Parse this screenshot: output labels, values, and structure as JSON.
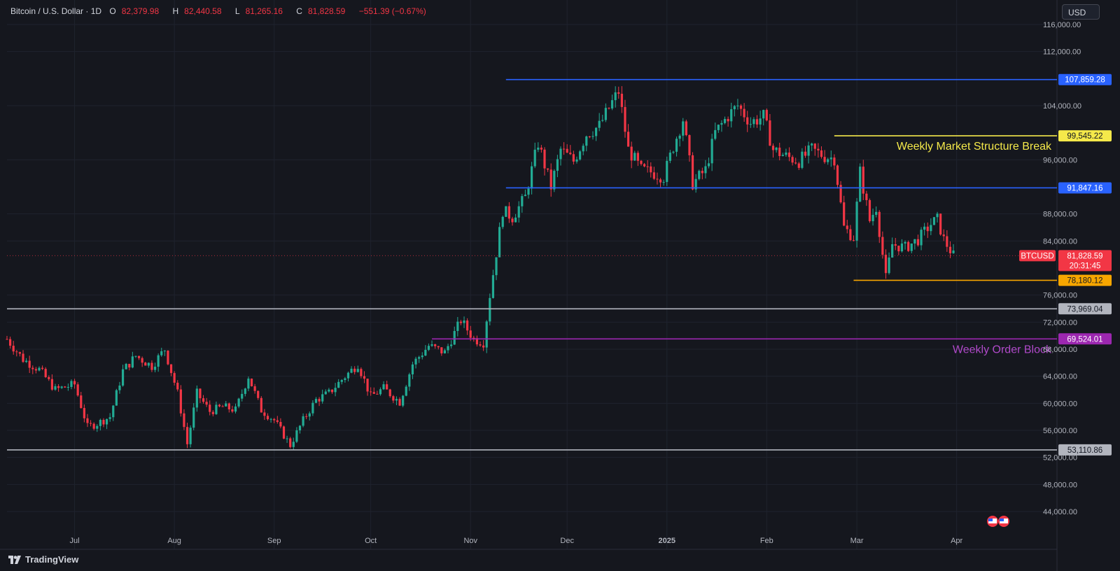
{
  "header": {
    "symbol": "Bitcoin / U.S. Dollar · 1D",
    "open_label": "O",
    "open": "82,379.98",
    "high_label": "H",
    "high": "82,440.58",
    "low_label": "L",
    "low": "81,265.16",
    "close_label": "C",
    "close": "81,828.59",
    "change": "−551.39 (−0.67%)"
  },
  "currency": "USD",
  "brand": "TradingView",
  "colors": {
    "background": "#15171e",
    "up": "#22ab94",
    "down": "#f23645",
    "blue_line": "#2962ff",
    "yellow_line": "#f5e94a",
    "orange_line": "#f7a600",
    "purple_line": "#9c27b0",
    "gray_line": "#b2b5be"
  },
  "chart_data": {
    "type": "candlestick",
    "ylim": [
      42000,
      118000
    ],
    "y_ticks": [
      "116,000.00",
      "112,000.00",
      "104,000.00",
      "96,000.00",
      "88,000.00",
      "84,000.00",
      "76,000.00",
      "72,000.00",
      "68,000.00",
      "64,000.00",
      "60,000.00",
      "56,000.00",
      "52,000.00",
      "48,000.00",
      "44,000.00"
    ],
    "y_tick_values": [
      116000,
      112000,
      104000,
      96000,
      88000,
      84000,
      76000,
      72000,
      68000,
      64000,
      60000,
      56000,
      52000,
      48000,
      44000
    ],
    "x_ticks": [
      {
        "label": "Jul",
        "date": "2024-07-01"
      },
      {
        "label": "Aug",
        "date": "2024-08-01"
      },
      {
        "label": "Sep",
        "date": "2024-09-01"
      },
      {
        "label": "Oct",
        "date": "2024-10-01"
      },
      {
        "label": "Nov",
        "date": "2024-11-01"
      },
      {
        "label": "Dec",
        "date": "2024-12-01"
      },
      {
        "label": "2025",
        "date": "2025-01-01"
      },
      {
        "label": "Feb",
        "date": "2025-02-01"
      },
      {
        "label": "Mar",
        "date": "2025-03-01"
      },
      {
        "label": "Apr",
        "date": "2025-04-01"
      }
    ],
    "x_range": [
      "2024-06-10",
      "2025-04-30"
    ],
    "close_path": [
      [
        "2024-06-10",
        69500
      ],
      [
        "2024-06-15",
        66500
      ],
      [
        "2024-06-20",
        65000
      ],
      [
        "2024-06-25",
        62000
      ],
      [
        "2024-07-01",
        62800
      ],
      [
        "2024-07-05",
        56500
      ],
      [
        "2024-07-08",
        57000
      ],
      [
        "2024-07-12",
        58000
      ],
      [
        "2024-07-16",
        64800
      ],
      [
        "2024-07-20",
        67000
      ],
      [
        "2024-07-25",
        65500
      ],
      [
        "2024-07-29",
        68000
      ],
      [
        "2024-08-02",
        61500
      ],
      [
        "2024-08-05",
        54000
      ],
      [
        "2024-08-08",
        61500
      ],
      [
        "2024-08-12",
        58800
      ],
      [
        "2024-08-16",
        59500
      ],
      [
        "2024-08-20",
        59000
      ],
      [
        "2024-08-24",
        64000
      ],
      [
        "2024-08-28",
        59000
      ],
      [
        "2024-09-01",
        57500
      ],
      [
        "2024-09-06",
        53800
      ],
      [
        "2024-09-10",
        57500
      ],
      [
        "2024-09-14",
        60500
      ],
      [
        "2024-09-18",
        61500
      ],
      [
        "2024-09-22",
        63500
      ],
      [
        "2024-09-27",
        65800
      ],
      [
        "2024-10-01",
        61000
      ],
      [
        "2024-10-05",
        62200
      ],
      [
        "2024-10-10",
        60200
      ],
      [
        "2024-10-14",
        65800
      ],
      [
        "2024-10-19",
        68500
      ],
      [
        "2024-10-24",
        67500
      ],
      [
        "2024-10-29",
        72300
      ],
      [
        "2024-11-02",
        69500
      ],
      [
        "2024-11-05",
        69000
      ],
      [
        "2024-11-07",
        76000
      ],
      [
        "2024-11-11",
        88500
      ],
      [
        "2024-11-14",
        87500
      ],
      [
        "2024-11-18",
        90500
      ],
      [
        "2024-11-22",
        98500
      ],
      [
        "2024-11-26",
        92000
      ],
      [
        "2024-11-29",
        97500
      ],
      [
        "2024-12-03",
        95800
      ],
      [
        "2024-12-07",
        99800
      ],
      [
        "2024-12-11",
        101000
      ],
      [
        "2024-12-15",
        104500
      ],
      [
        "2024-12-17",
        106100
      ],
      [
        "2024-12-20",
        97500
      ],
      [
        "2024-12-24",
        94500
      ],
      [
        "2024-12-27",
        94200
      ],
      [
        "2024-12-31",
        93500
      ],
      [
        "2025-01-03",
        98000
      ],
      [
        "2025-01-06",
        102000
      ],
      [
        "2025-01-09",
        92500
      ],
      [
        "2025-01-13",
        94500
      ],
      [
        "2025-01-16",
        100000
      ],
      [
        "2025-01-20",
        102500
      ],
      [
        "2025-01-23",
        104000
      ],
      [
        "2025-01-27",
        101500
      ],
      [
        "2025-01-31",
        102400
      ],
      [
        "2025-02-03",
        97500
      ],
      [
        "2025-02-07",
        96500
      ],
      [
        "2025-02-11",
        95800
      ],
      [
        "2025-02-15",
        97500
      ],
      [
        "2025-02-19",
        96500
      ],
      [
        "2025-02-22",
        96200
      ],
      [
        "2025-02-25",
        86000
      ],
      [
        "2025-02-28",
        84500
      ],
      [
        "2025-03-02",
        94200
      ],
      [
        "2025-03-05",
        87000
      ],
      [
        "2025-03-07",
        89000
      ],
      [
        "2025-03-10",
        78500
      ],
      [
        "2025-03-12",
        83500
      ],
      [
        "2025-03-16",
        83000
      ],
      [
        "2025-03-20",
        84200
      ],
      [
        "2025-03-24",
        86500
      ],
      [
        "2025-03-26",
        87200
      ],
      [
        "2025-03-28",
        84200
      ],
      [
        "2025-03-31",
        81828
      ]
    ],
    "levels": [
      {
        "name": "resistance-high",
        "value": 107859.28,
        "label": "107,859.28",
        "color": "#2962ff",
        "start": "2024-11-12"
      },
      {
        "name": "market-structure-break",
        "value": 99545.22,
        "label": "99,545.22",
        "color": "#f5e94a",
        "start": "2025-02-22",
        "annotation": "Weekly Market Structure Break"
      },
      {
        "name": "support-range",
        "value": 91847.16,
        "label": "91,847.16",
        "color": "#2962ff",
        "start": "2024-11-12"
      },
      {
        "name": "recent-low",
        "value": 78180.12,
        "label": "78,180.12",
        "color": "#f7a600",
        "start": "2025-02-28"
      },
      {
        "name": "gray-upper",
        "value": 73969.04,
        "label": "73,969.04",
        "color": "#b2b5be",
        "start": "2024-06-10"
      },
      {
        "name": "weekly-order-block",
        "value": 69524.01,
        "label": "69,524.01",
        "color": "#9c27b0",
        "start": "2024-10-20",
        "annotation": "Weekly Order Block"
      },
      {
        "name": "gray-lower",
        "value": 53110.86,
        "label": "53,110.86",
        "color": "#b2b5be",
        "start": "2024-06-10"
      }
    ],
    "last_price": {
      "value": 81828.59,
      "label": "81,828.59",
      "countdown": "20:31:45",
      "symbol": "BTCUSD",
      "color": "#f23645"
    }
  }
}
